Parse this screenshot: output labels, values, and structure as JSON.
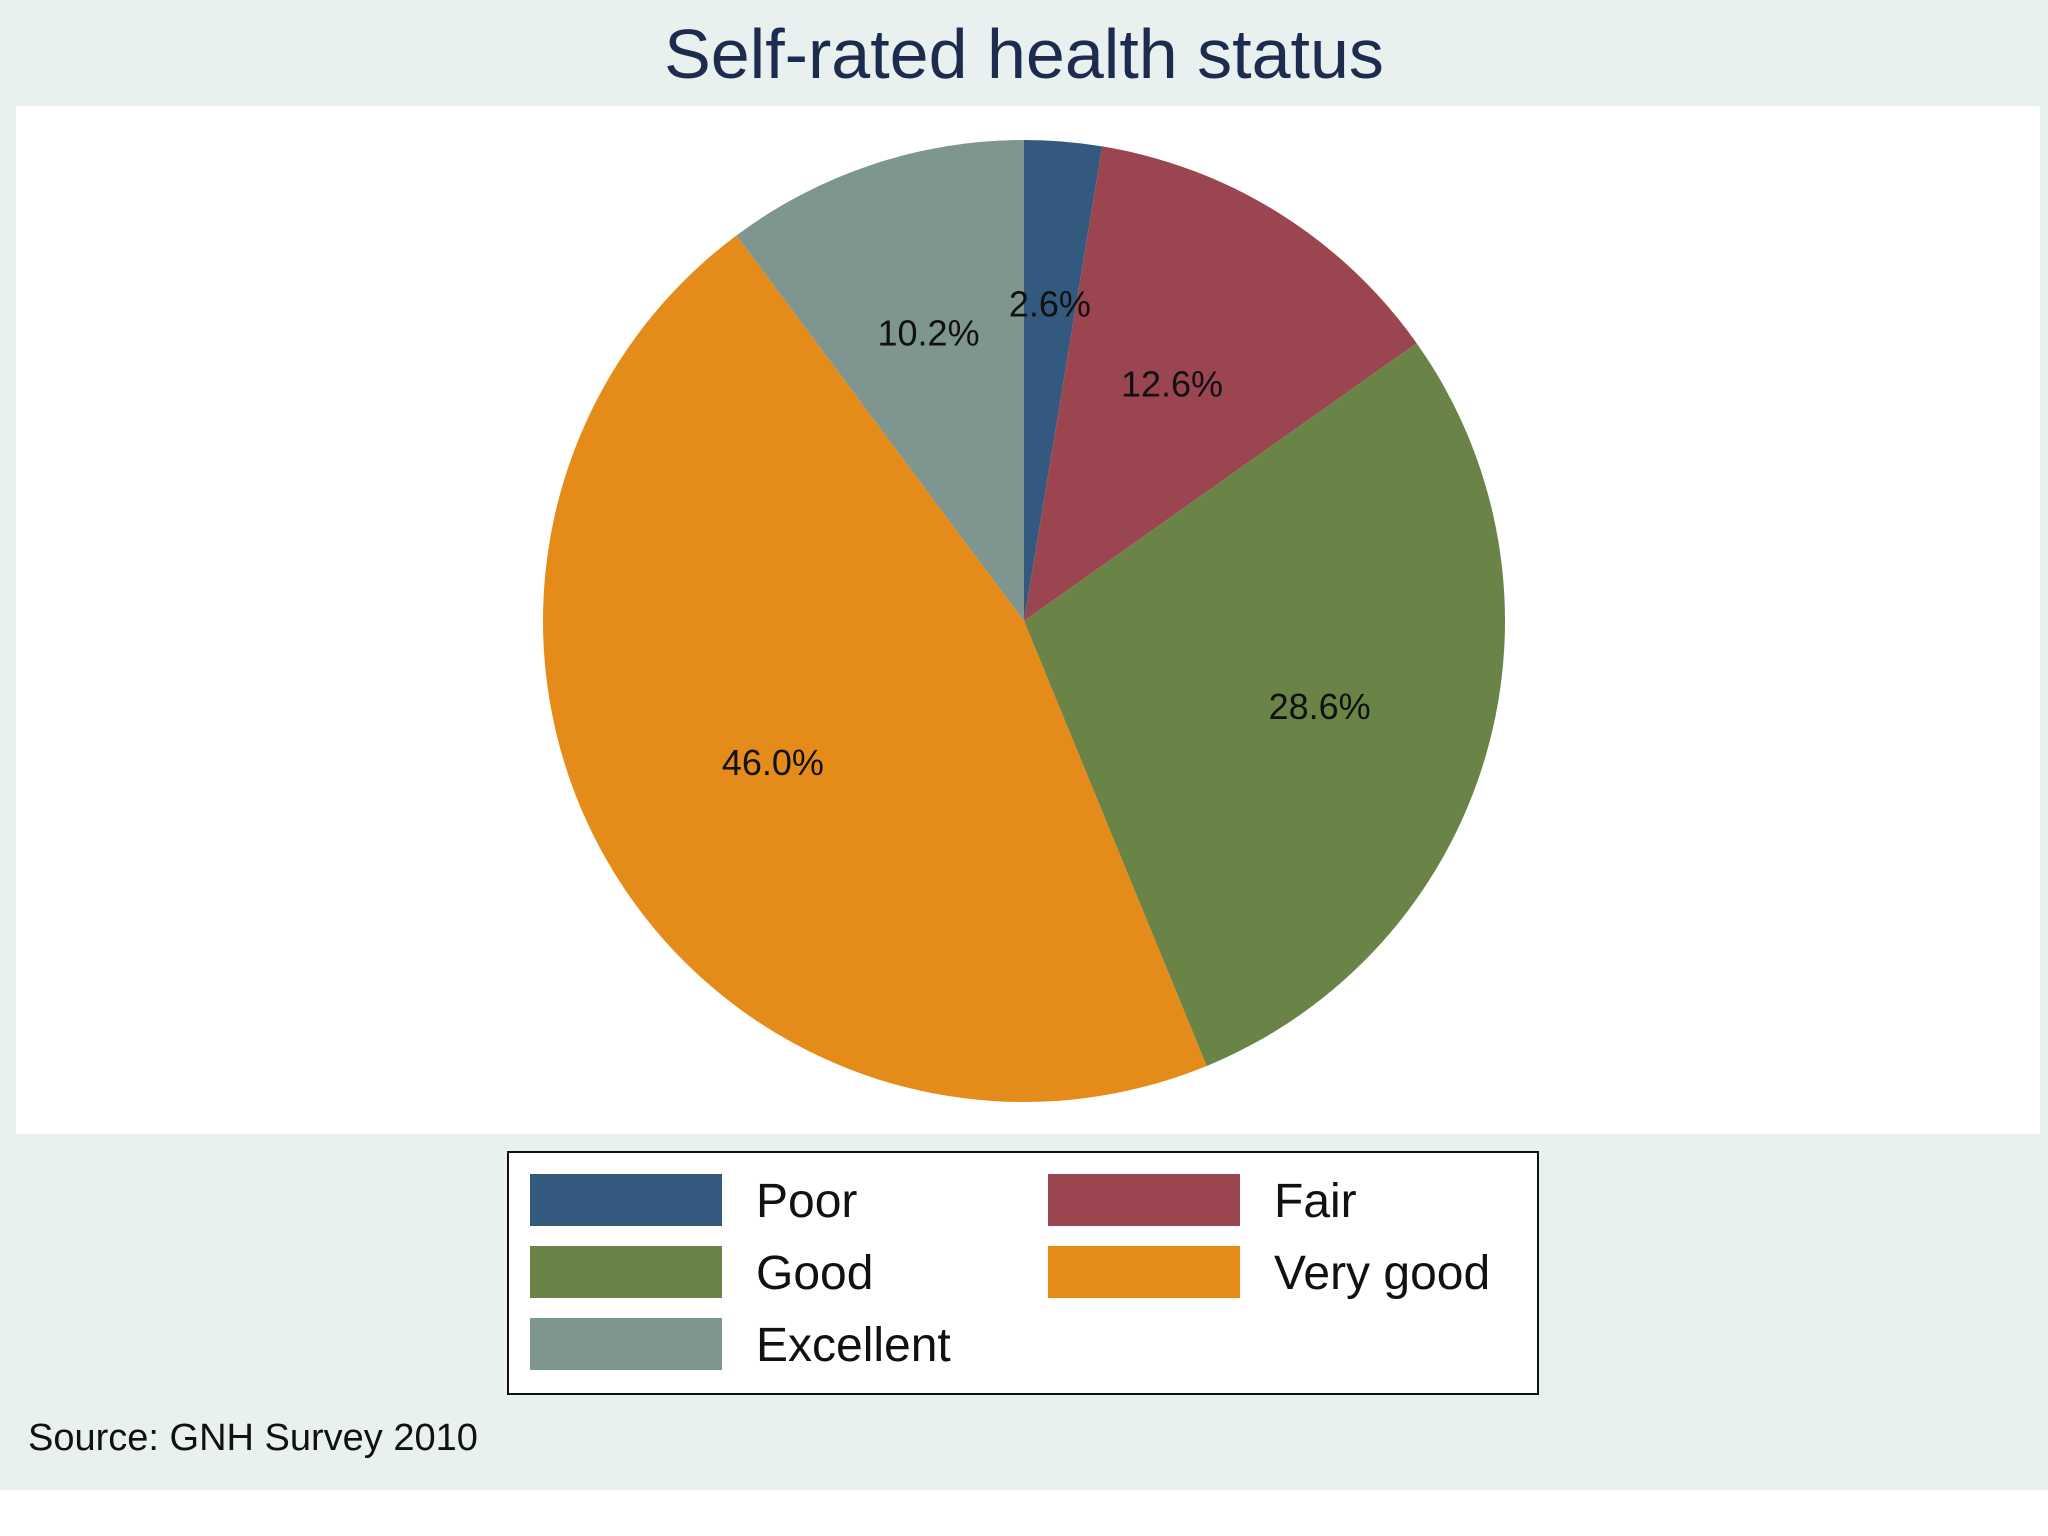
{
  "chart_data": {
    "type": "pie",
    "title": "Self-rated health status",
    "categories": [
      "Poor",
      "Fair",
      "Good",
      "Very good",
      "Excellent"
    ],
    "values": [
      2.6,
      12.6,
      28.6,
      46.0,
      10.2
    ],
    "value_labels": [
      "2.6%",
      "12.6%",
      "28.6%",
      "46.0%",
      "10.2%"
    ],
    "colors": [
      "#335a7e",
      "#9b4550",
      "#6a8346",
      "#e58b1a",
      "#7e968f"
    ],
    "start_angle": "12 o'clock",
    "direction": "clockwise",
    "legend": {
      "placement": "bottom",
      "columns": 2,
      "entries": [
        "Poor",
        "Fair",
        "Good",
        "Very good",
        "Excellent"
      ]
    },
    "source": "Source: GNH Survey 2010"
  },
  "colors": {
    "page_background": "#e8f1f0",
    "plot_background": "#ffffff",
    "title_color": "#1c2b4e",
    "text_color": "#111111"
  }
}
